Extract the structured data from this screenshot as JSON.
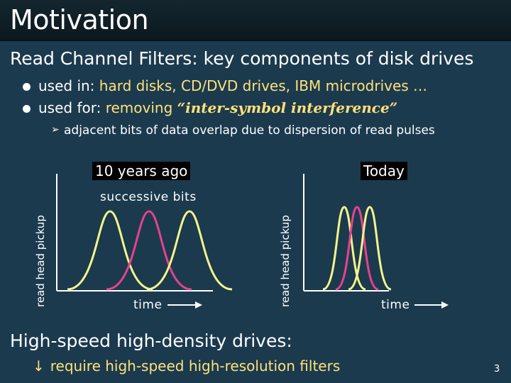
{
  "title": "Motivation",
  "subtitle": "Read Channel Filters:  key components of disk drives",
  "bullets": [
    {
      "prefix": "used in:  ",
      "highlight": "hard disks, CD/DVD drives, IBM microdrives …",
      "emphasis": ""
    },
    {
      "prefix": "used for:  ",
      "highlight": "removing ",
      "emphasis": "“inter-symbol interference”"
    }
  ],
  "sub_bullet": "adjacent bits of data overlap due to dispersion of read pulses",
  "diagram": {
    "left_label": "10 years ago",
    "right_label": "Today",
    "bits_label": "successive bits",
    "time_label": "time",
    "ylabel": "read head pickup",
    "colors": {
      "yellow": "#f4f58a",
      "pink": "#e8418f",
      "axis": "#ffffff"
    }
  },
  "bottom": {
    "heading": "High-speed high-density drives:",
    "arrow": "↓",
    "bullet": "require high-speed high-resolution filters"
  },
  "page_number": "3"
}
